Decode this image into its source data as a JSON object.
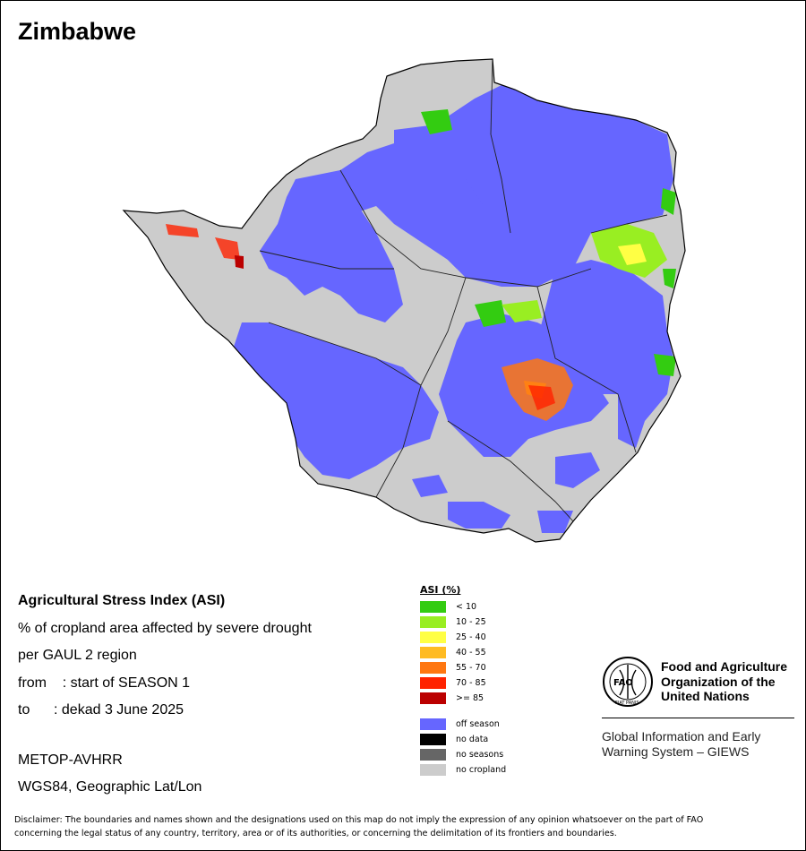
{
  "map": {
    "title": "Zimbabwe"
  },
  "info": {
    "line1": "Agricultural Stress Index (ASI)",
    "line2": "% of cropland area affected by severe drought",
    "line3": "per GAUL 2 region",
    "line4": "from    : start of SEASON 1",
    "line5": "to      : dekad 3 June 2025"
  },
  "sensor": {
    "line1": "METOP-AVHRR",
    "line2": "WGS84, Geographic Lat/Lon"
  },
  "legend": {
    "title": "ASI (%)",
    "classes": [
      {
        "label": "< 10",
        "color": "#33cc11"
      },
      {
        "label": "10 - 25",
        "color": "#99ee22"
      },
      {
        "label": "25 - 40",
        "color": "#ffff44"
      },
      {
        "label": "40 - 55",
        "color": "#ffbb22"
      },
      {
        "label": "55 - 70",
        "color": "#ff7711"
      },
      {
        "label": "70 - 85",
        "color": "#ff2200"
      },
      {
        "label": ">= 85",
        "color": "#bb0000"
      }
    ],
    "other": [
      {
        "label": "off season",
        "color": "#6666ff"
      },
      {
        "label": "no data",
        "color": "#000000"
      },
      {
        "label": "no seasons",
        "color": "#666666"
      },
      {
        "label": "no cropland",
        "color": "#cccccc"
      }
    ]
  },
  "fao": {
    "logo_text": "FAO",
    "logo_motto": "FIAT PANIS",
    "org_line1": "Food and Agriculture",
    "org_line2": "Organization of the",
    "org_line3": "United Nations",
    "giews_line1": "Global Information and Early",
    "giews_line2": "Warning System – GIEWS"
  },
  "disclaimer": {
    "line1": "Disclaimer: The boundaries and names shown and the designations used on this map do not imply the expression of any opinion whatsoever on the part of FAO",
    "line2": "concerning the legal status of any country, territory, area or of its authorities, or concerning the delimitation of its frontiers and boundaries."
  }
}
